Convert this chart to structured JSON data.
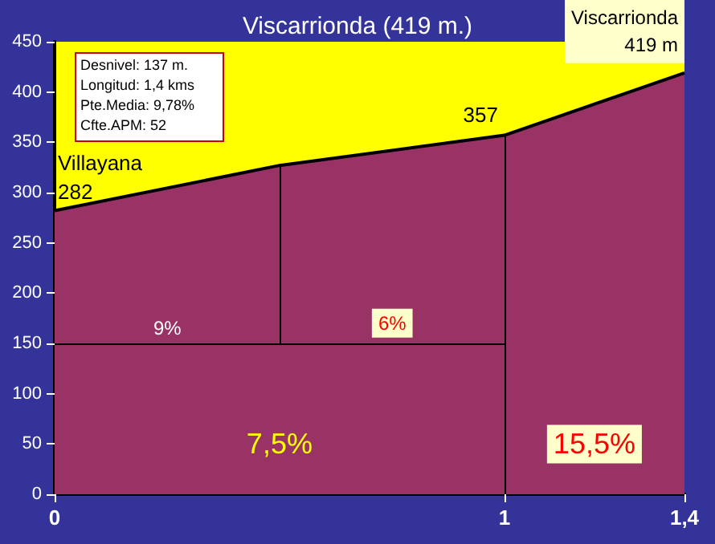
{
  "chart_data": {
    "type": "area",
    "title": "Viscarrionda (419 m.)",
    "x": [
      0,
      0.5,
      1,
      1.4
    ],
    "series": [
      {
        "color": "#993366",
        "values": [
          282,
          327,
          357,
          419
        ]
      }
    ],
    "xlim": [
      0,
      1.4
    ],
    "xticks": [
      0,
      1,
      {
        "value": 1.4,
        "label": "1,4"
      }
    ],
    "ylim": [
      0,
      450
    ],
    "yticks": [
      0,
      50,
      100,
      150,
      200,
      250,
      300,
      350,
      400,
      450
    ],
    "grid": false,
    "marker": "none",
    "ref_lines": [
      {
        "axis": "y",
        "value": 150
      },
      {
        "axis": "x",
        "value": 0.5
      },
      {
        "axis": "x",
        "value": 1
      }
    ],
    "annotations": [
      "Desnivel: 137 m.",
      "Longitud: 1,4 kms",
      "Pte.Media: 9,78%",
      "Cfte.APM: 52",
      "9%",
      "6%",
      "7,5%",
      "15,5%",
      {
        "text": "Villayana\n282",
        "x": 0,
        "y": 282
      },
      {
        "text": "357",
        "x": 1,
        "y": 357
      },
      {
        "text": "Viscarrionda\n419 m",
        "x": 1.4,
        "y": 419
      }
    ]
  }
}
